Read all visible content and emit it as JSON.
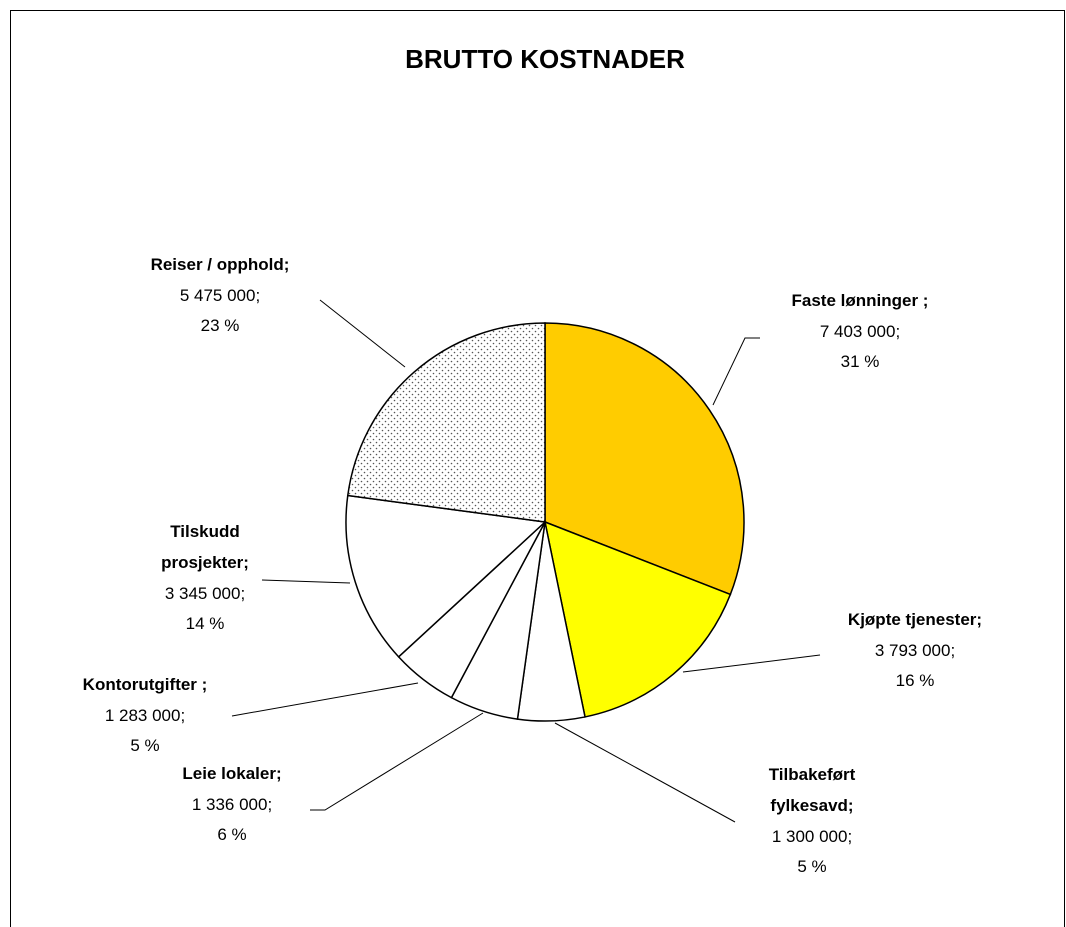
{
  "chart_data": {
    "type": "pie",
    "title": "BRUTTO KOSTNADER",
    "categories": [
      "Faste lønninger ;",
      "Kjøpte tjenester;",
      "Tilbakeført fylkesavd;",
      "Leie lokaler;",
      "Kontorutgifter ;",
      "Tilskudd prosjekter;",
      "Reiser / opphold;"
    ],
    "values": [
      7403000,
      3793000,
      1300000,
      1336000,
      1283000,
      3345000,
      5475000
    ],
    "value_labels": [
      "7 403 000;",
      "3 793 000;",
      "1 300 000;",
      "1 336 000;",
      "1 283 000;",
      "3 345 000;",
      "5 475 000;"
    ],
    "percents": [
      31,
      16,
      5,
      6,
      5,
      14,
      23
    ],
    "percent_labels": [
      "31 %",
      "16 %",
      "5 %",
      "6 %",
      "5 %",
      "14 %",
      "23 %"
    ],
    "colors": [
      "#ffcc00",
      "#ffff00",
      "#ffffff",
      "#ffffff",
      "#ffffff",
      "#ffffff",
      "dotted"
    ]
  }
}
